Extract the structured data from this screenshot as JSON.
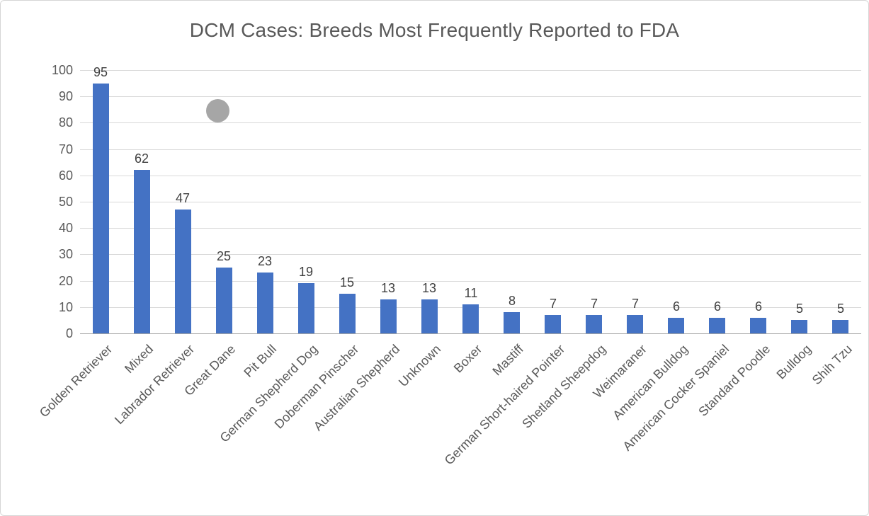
{
  "chart_data": {
    "type": "bar",
    "title": "DCM Cases: Breeds Most Frequently Reported to FDA",
    "categories": [
      "Golden Retriever",
      "Mixed",
      "Labrador Retriever",
      "Great Dane",
      "Pit Bull",
      "German Shepherd Dog",
      "Doberman Pinscher",
      "Australian Shepherd",
      "Unknown",
      "Boxer",
      "Mastiff",
      "German Short-haired Pointer",
      "Shetland Sheepdog",
      "Weimaraner",
      "American Bulldog",
      "American Cocker Spaniel",
      "Standard Poodle",
      "Bulldog",
      "Shih Tzu"
    ],
    "values": [
      95,
      62,
      47,
      25,
      23,
      19,
      15,
      13,
      13,
      11,
      8,
      7,
      7,
      7,
      6,
      6,
      6,
      5,
      5
    ],
    "xlabel": "",
    "ylabel": "",
    "ylim": [
      0,
      100
    ],
    "yticks": [
      0,
      10,
      20,
      30,
      40,
      50,
      60,
      70,
      80,
      90,
      100
    ],
    "grid": true,
    "legend": "none",
    "data_labels": true,
    "bar_color": "#4472C4",
    "grid_color": "#d9d9d9",
    "axis_color": "#a6a6a6",
    "text_color": "#595959",
    "label_color": "#404040"
  },
  "annotation": {
    "shape": "circle",
    "color": "#a6a6a6"
  }
}
